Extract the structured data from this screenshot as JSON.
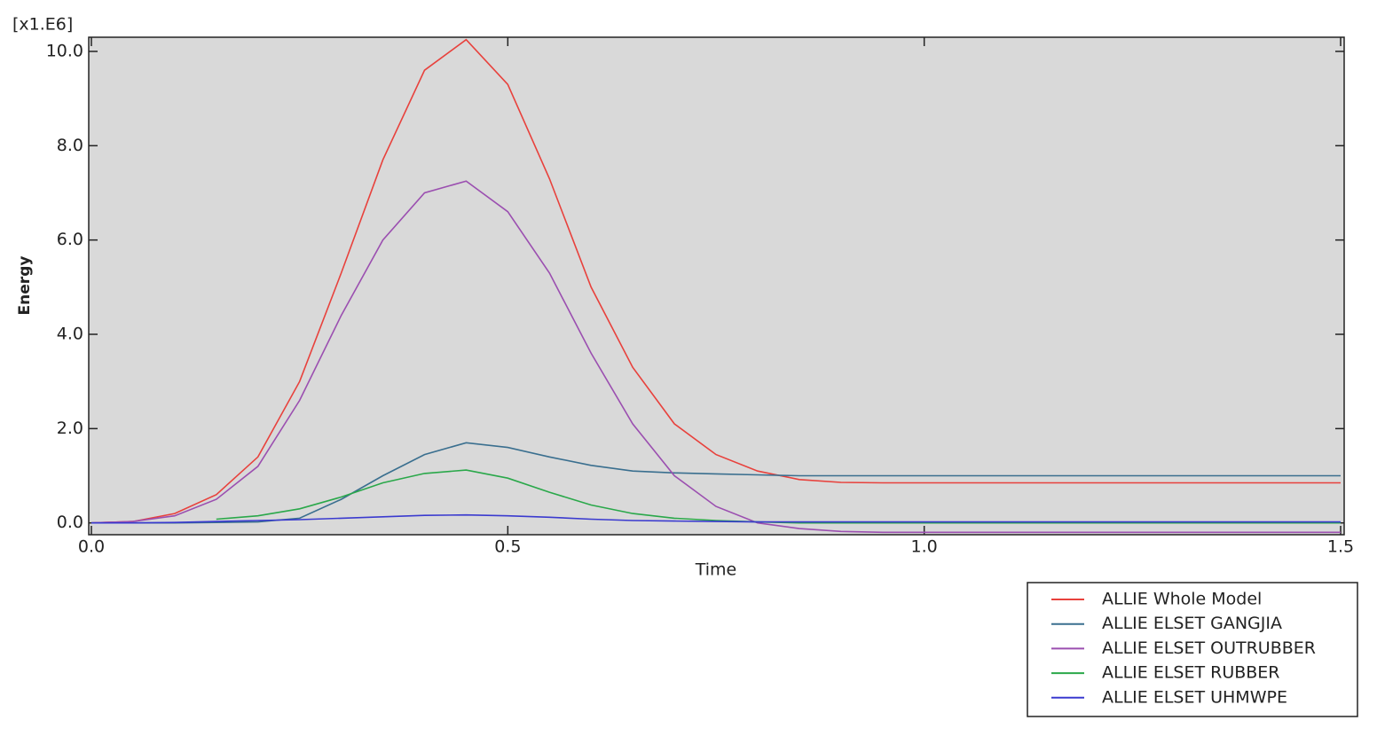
{
  "chart_data": {
    "type": "line",
    "y_multiplier": "[x1.E6]",
    "xlabel": "Time",
    "ylabel": "Energy",
    "x": [
      0,
      0.05,
      0.1,
      0.15,
      0.2,
      0.25,
      0.3,
      0.35,
      0.4,
      0.45,
      0.5,
      0.55,
      0.6,
      0.65,
      0.7,
      0.75,
      0.8,
      0.85,
      0.9,
      0.95,
      1.0,
      1.05,
      1.1,
      1.15,
      1.2,
      1.25,
      1.3,
      1.35,
      1.4,
      1.45,
      1.5
    ],
    "series": [
      {
        "name": "ALLIE Whole Model",
        "color": "#e8413c",
        "values": [
          0,
          0.03,
          0.2,
          0.6,
          1.4,
          3.0,
          5.3,
          7.7,
          9.6,
          10.25,
          9.3,
          7.3,
          5.0,
          3.3,
          2.1,
          1.45,
          1.1,
          0.92,
          0.86,
          0.85,
          0.85,
          0.85,
          0.85,
          0.85,
          0.85,
          0.85,
          0.85,
          0.85,
          0.85,
          0.85,
          0.85
        ]
      },
      {
        "name": "ALLIE ELSET GANGJIA",
        "color": "#3a6f8f",
        "values": [
          0,
          0,
          0,
          0.01,
          0.02,
          0.1,
          0.5,
          1.0,
          1.45,
          1.7,
          1.6,
          1.4,
          1.22,
          1.1,
          1.06,
          1.04,
          1.02,
          1.0,
          1.0,
          1.0,
          1.0,
          1.0,
          1.0,
          1.0,
          1.0,
          1.0,
          1.0,
          1.0,
          1.0,
          1.0,
          1.0
        ]
      },
      {
        "name": "ALLIE ELSET OUTRUBBER",
        "color": "#9b4fb0",
        "values": [
          0,
          0.03,
          0.15,
          0.5,
          1.2,
          2.6,
          4.4,
          6.0,
          7.0,
          7.25,
          6.6,
          5.3,
          3.6,
          2.1,
          1.0,
          0.35,
          0.0,
          -0.12,
          -0.18,
          -0.2,
          -0.2,
          -0.2,
          -0.2,
          -0.2,
          -0.2,
          -0.2,
          -0.2,
          -0.2,
          -0.2,
          -0.2,
          -0.2
        ]
      },
      {
        "name": "ALLIE ELSET RUBBER",
        "color": "#2aa84a",
        "values": [
          null,
          null,
          null,
          0.08,
          0.15,
          0.3,
          0.55,
          0.85,
          1.05,
          1.12,
          0.95,
          0.65,
          0.38,
          0.2,
          0.1,
          0.05,
          0.02,
          0,
          0,
          0,
          0,
          0,
          0,
          0,
          0,
          0,
          0,
          0,
          0,
          0,
          0
        ]
      },
      {
        "name": "ALLIE ELSET UHMWPE",
        "color": "#3a3acf",
        "values": [
          0,
          0,
          0.01,
          0.03,
          0.05,
          0.07,
          0.1,
          0.13,
          0.16,
          0.17,
          0.15,
          0.12,
          0.08,
          0.05,
          0.04,
          0.03,
          0.02,
          0.02,
          0.02,
          0.02,
          0.02,
          0.02,
          0.02,
          0.02,
          0.02,
          0.02,
          0.02,
          0.02,
          0.02,
          0.02,
          0.02
        ]
      }
    ],
    "xlim": [
      0,
      1.5
    ],
    "xticks": [
      {
        "value": 0,
        "label": "0.0"
      },
      0.5,
      {
        "value": 1,
        "label": "1.0"
      },
      1.5
    ],
    "ylim": [
      -0.25,
      10.3
    ],
    "yticks": [
      {
        "value": 0,
        "label": "0.0"
      },
      {
        "value": 2,
        "label": "2.0"
      },
      {
        "value": 4,
        "label": "4.0"
      },
      {
        "value": 6,
        "label": "6.0"
      },
      {
        "value": 8,
        "label": "8.0"
      },
      {
        "value": 10,
        "label": "10.0"
      }
    ],
    "legend": "bottom-right"
  }
}
